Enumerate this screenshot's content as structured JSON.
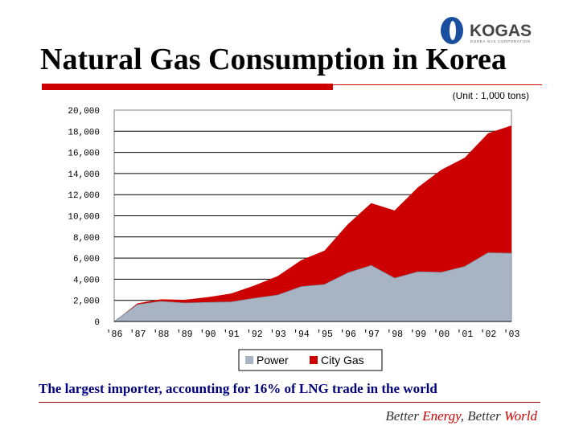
{
  "logo": {
    "text": "KOGAS",
    "tagline": "KOREA GAS CORPORATION"
  },
  "slide": {
    "title": "Natural Gas Consumption in Korea",
    "caption": "The largest importer,  accounting for 16% of LNG trade in the world",
    "slogan": {
      "part1": "Better ",
      "part2": "Energy",
      "part3": ", Better ",
      "part4": "World"
    }
  },
  "colors": {
    "power": "#a8b4c4",
    "city_gas": "#cc0000",
    "brand_blue": "#1a4fa0"
  },
  "chart_data": {
    "type": "area",
    "stacked": true,
    "unit_label": "(Unit : 1,000 tons)",
    "x": [
      "'86",
      "'87",
      "'88",
      "'89",
      "'90",
      "'91",
      "'92",
      "'93",
      "'94",
      "'95",
      "'96",
      "'97",
      "'98",
      "'99",
      "'00",
      "'01",
      "'02",
      "'03"
    ],
    "series": [
      {
        "name": "Power",
        "values": [
          0,
          1600,
          1900,
          1750,
          1800,
          1850,
          2200,
          2500,
          3300,
          3500,
          4600,
          5300,
          4100,
          4700,
          4650,
          5200,
          6500,
          6450
        ]
      },
      {
        "name": "City Gas",
        "values": [
          0,
          120,
          200,
          300,
          500,
          800,
          1200,
          1800,
          2500,
          3200,
          4600,
          5900,
          6400,
          8000,
          9700,
          10300,
          11300,
          12100
        ]
      }
    ],
    "y_ticks": [
      "0",
      "2,000",
      "4,000",
      "6,000",
      "8,000",
      "10,000",
      "12,000",
      "14,000",
      "16,000",
      "18,000",
      "20,000"
    ],
    "ylim": [
      0,
      20000
    ],
    "grid": true,
    "legend": {
      "position": "bottom"
    }
  }
}
